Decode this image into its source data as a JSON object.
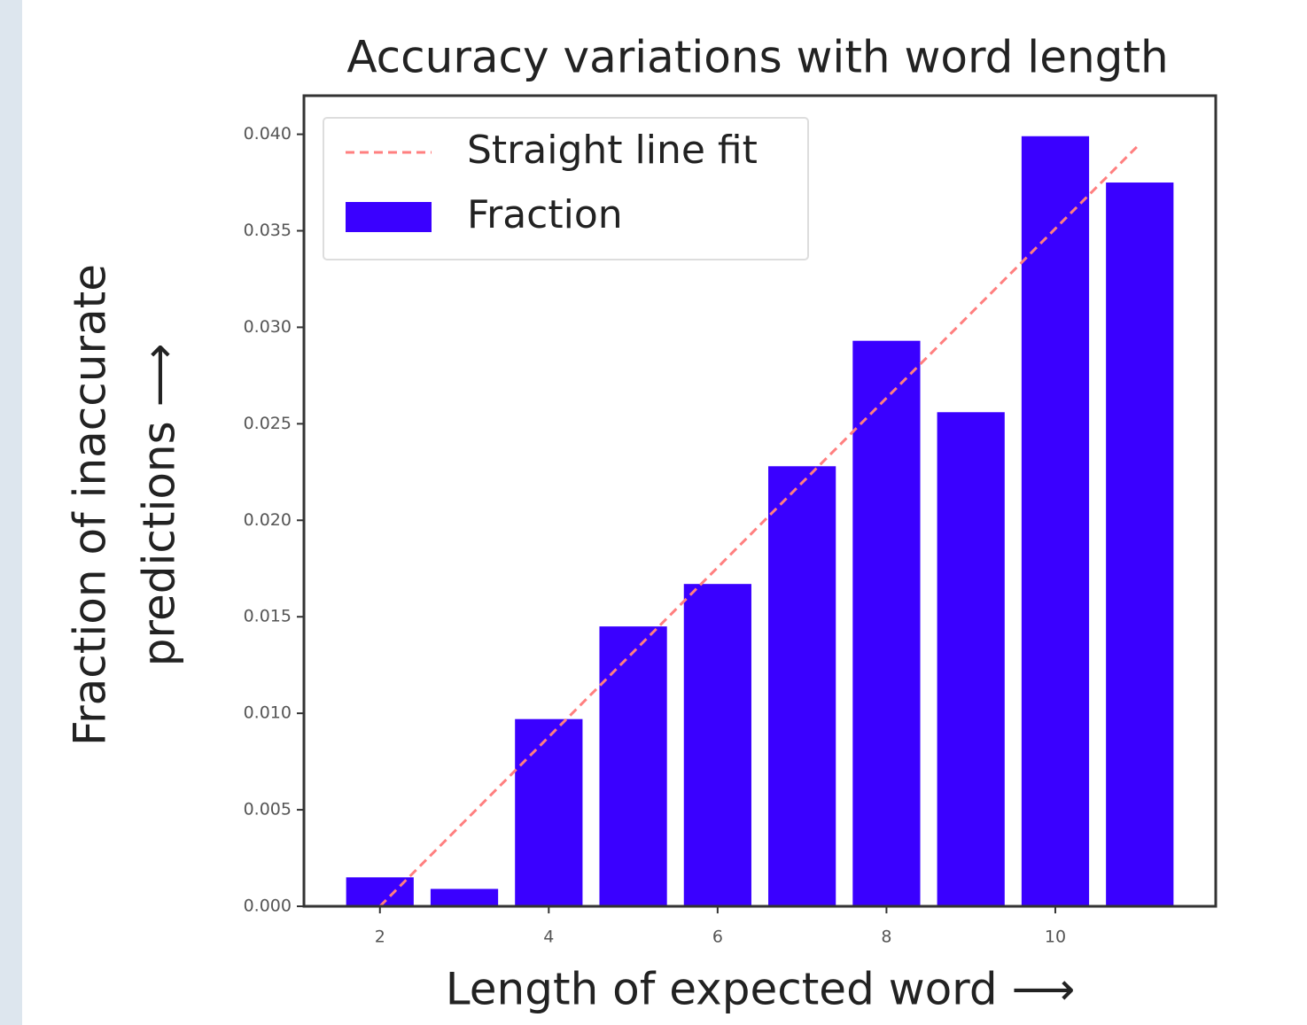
{
  "chart_data": {
    "type": "bar",
    "title": "Accuracy variations with word length",
    "xlabel": "Length of expected word ⟶",
    "ylabel": [
      "Fraction of inaccurate",
      "predictions ⟶"
    ],
    "series": [
      {
        "name": "Straight line fit",
        "type": "line",
        "style": "dashed",
        "color": "#ff7f7f",
        "x": [
          2,
          11
        ],
        "values": [
          0.0,
          0.0395
        ]
      },
      {
        "name": "Fraction",
        "type": "bar",
        "color": "#3a00ff",
        "x": [
          2,
          3,
          4,
          5,
          6,
          7,
          8,
          9,
          10,
          11
        ],
        "values": [
          0.0015,
          0.0009,
          0.0097,
          0.0145,
          0.0167,
          0.0228,
          0.0293,
          0.0256,
          0.0399,
          0.0375
        ]
      }
    ],
    "xlim": [
      1.1,
      11.9
    ],
    "ylim": [
      0,
      0.042
    ],
    "xticks": [
      2,
      4,
      6,
      8,
      10
    ],
    "yticks": [
      {
        "value": 0,
        "label": "0.000"
      },
      {
        "value": 0.005,
        "label": "0.005"
      },
      {
        "value": 0.01,
        "label": "0.010"
      },
      {
        "value": 0.015,
        "label": "0.015"
      },
      {
        "value": 0.02,
        "label": "0.020"
      },
      {
        "value": 0.025,
        "label": "0.025"
      },
      {
        "value": 0.03,
        "label": "0.030"
      },
      {
        "value": 0.035,
        "label": "0.035"
      },
      {
        "value": 0.04,
        "label": "0.040"
      }
    ],
    "legend": "upper left",
    "grid": false
  }
}
